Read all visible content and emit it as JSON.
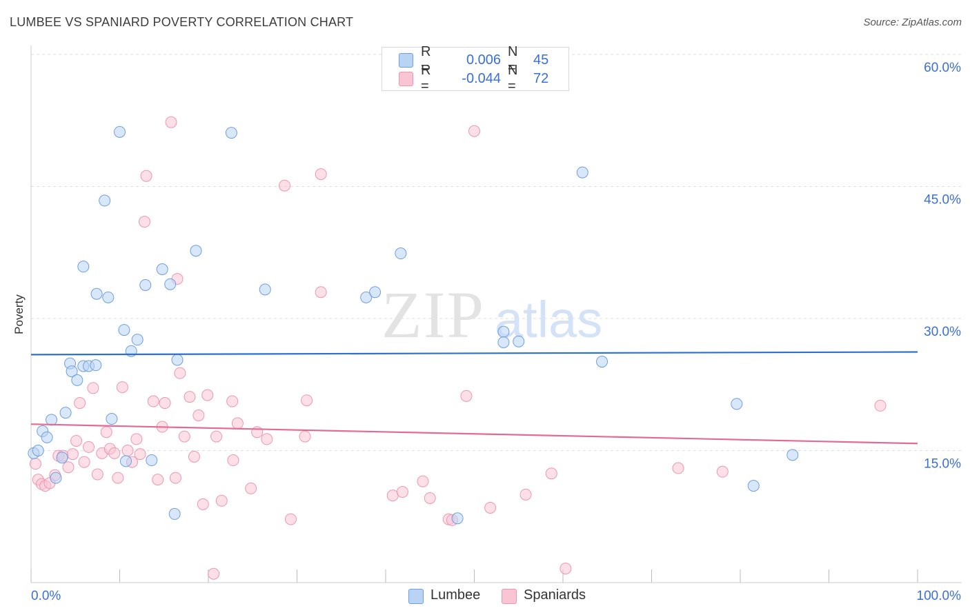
{
  "header": {
    "title": "LUMBEE VS SPANIARD POVERTY CORRELATION CHART",
    "source": "Source: ZipAtlas.com"
  },
  "legend": {
    "r_label": "R =",
    "n_label": "N =",
    "rows": [
      {
        "name": "Lumbee",
        "r": "0.006",
        "n": "45"
      },
      {
        "name": "Spaniards",
        "r": "-0.044",
        "n": "72"
      }
    ]
  },
  "bottom_legend": [
    "Lumbee",
    "Spaniards"
  ],
  "watermark": {
    "zip": "ZIP",
    "atlas": "atlas"
  },
  "colors": {
    "lumbee_fill": "#b9d3f5",
    "lumbee_stroke": "#6c9ee0",
    "lumbee_line": "#2a6fd1",
    "spaniards_fill": "#f9c4d3",
    "spaniards_stroke": "#eb97b1",
    "spaniards_line": "#e36a93",
    "axis_text": "#3a6fd8",
    "grid": "#dddddd"
  },
  "chart_data": {
    "type": "scatter",
    "title": "LUMBEE VS SPANIARD POVERTY CORRELATION CHART",
    "xlabel": "",
    "ylabel": "Poverty",
    "xlim": [
      0,
      100
    ],
    "ylim": [
      0,
      60
    ],
    "x_tick_labels": [
      "0.0%",
      "100.0%"
    ],
    "y_ticks": [
      15,
      30,
      45,
      60
    ],
    "y_tick_labels": [
      "15.0%",
      "30.0%",
      "45.0%",
      "60.0%"
    ],
    "grid": true,
    "legend_position": "top-center",
    "series": [
      {
        "name": "Lumbee",
        "r": 0.006,
        "n": 45,
        "trend": [
          [
            0,
            25.9
          ],
          [
            100,
            26.2
          ]
        ],
        "points": [
          [
            0.3,
            14.7
          ],
          [
            0.8,
            15.0
          ],
          [
            1.3,
            17.2
          ],
          [
            1.8,
            16.5
          ],
          [
            2.3,
            18.5
          ],
          [
            2.8,
            11.9
          ],
          [
            3.5,
            14.2
          ],
          [
            3.9,
            19.3
          ],
          [
            4.4,
            24.9
          ],
          [
            4.6,
            24.0
          ],
          [
            5.2,
            23.0
          ],
          [
            5.9,
            24.6
          ],
          [
            6.5,
            24.6
          ],
          [
            7.3,
            24.7
          ],
          [
            5.9,
            35.9
          ],
          [
            7.4,
            32.8
          ],
          [
            8.3,
            43.4
          ],
          [
            8.7,
            32.4
          ],
          [
            9.1,
            18.6
          ],
          [
            10.0,
            51.2
          ],
          [
            10.5,
            28.7
          ],
          [
            11.3,
            26.3
          ],
          [
            10.7,
            13.8
          ],
          [
            12.0,
            27.6
          ],
          [
            12.9,
            33.8
          ],
          [
            13.6,
            13.9
          ],
          [
            14.8,
            35.6
          ],
          [
            15.7,
            33.9
          ],
          [
            16.2,
            7.8
          ],
          [
            16.5,
            25.3
          ],
          [
            18.6,
            37.7
          ],
          [
            22.6,
            51.1
          ],
          [
            26.4,
            33.3
          ],
          [
            37.8,
            32.4
          ],
          [
            38.8,
            33.0
          ],
          [
            41.7,
            37.4
          ],
          [
            48.1,
            7.3
          ],
          [
            53.3,
            28.5
          ],
          [
            53.3,
            27.3
          ],
          [
            55.0,
            27.4
          ],
          [
            62.2,
            46.6
          ],
          [
            64.4,
            25.1
          ],
          [
            79.6,
            20.3
          ],
          [
            81.5,
            11.0
          ],
          [
            85.9,
            14.5
          ]
        ]
      },
      {
        "name": "Spaniards",
        "r": -0.044,
        "n": 72,
        "trend": [
          [
            0,
            18.0
          ],
          [
            100,
            15.8
          ]
        ],
        "points": [
          [
            0.5,
            13.5
          ],
          [
            0.8,
            11.7
          ],
          [
            1.2,
            11.2
          ],
          [
            1.6,
            11.0
          ],
          [
            2.1,
            11.3
          ],
          [
            2.7,
            12.2
          ],
          [
            3.1,
            14.4
          ],
          [
            3.6,
            14.4
          ],
          [
            4.2,
            13.1
          ],
          [
            4.7,
            14.6
          ],
          [
            5.1,
            16.1
          ],
          [
            5.5,
            20.4
          ],
          [
            6.0,
            13.7
          ],
          [
            6.5,
            15.4
          ],
          [
            7.0,
            22.1
          ],
          [
            7.5,
            12.3
          ],
          [
            8.0,
            14.7
          ],
          [
            8.5,
            17.1
          ],
          [
            8.9,
            15.2
          ],
          [
            9.4,
            14.7
          ],
          [
            9.8,
            11.9
          ],
          [
            10.3,
            22.2
          ],
          [
            10.9,
            15.0
          ],
          [
            11.4,
            13.7
          ],
          [
            11.9,
            16.3
          ],
          [
            12.3,
            14.6
          ],
          [
            13.0,
            46.2
          ],
          [
            12.8,
            41.0
          ],
          [
            13.8,
            20.6
          ],
          [
            14.3,
            11.7
          ],
          [
            14.8,
            17.7
          ],
          [
            15.1,
            20.4
          ],
          [
            15.8,
            52.3
          ],
          [
            16.3,
            11.9
          ],
          [
            16.5,
            34.5
          ],
          [
            16.8,
            23.8
          ],
          [
            17.3,
            16.6
          ],
          [
            17.9,
            21.1
          ],
          [
            18.4,
            14.3
          ],
          [
            18.9,
            19.0
          ],
          [
            19.4,
            8.9
          ],
          [
            19.9,
            21.3
          ],
          [
            20.6,
            1.0
          ],
          [
            20.9,
            16.6
          ],
          [
            21.5,
            9.3
          ],
          [
            22.7,
            20.6
          ],
          [
            22.8,
            13.9
          ],
          [
            23.3,
            18.1
          ],
          [
            24.8,
            10.7
          ],
          [
            25.5,
            17.1
          ],
          [
            26.6,
            16.3
          ],
          [
            28.6,
            45.1
          ],
          [
            29.3,
            7.2
          ],
          [
            30.9,
            16.6
          ],
          [
            31.1,
            20.7
          ],
          [
            32.7,
            46.4
          ],
          [
            32.7,
            33.0
          ],
          [
            40.8,
            9.9
          ],
          [
            41.9,
            10.3
          ],
          [
            44.2,
            11.5
          ],
          [
            45.0,
            9.6
          ],
          [
            47.1,
            7.2
          ],
          [
            47.5,
            7.1
          ],
          [
            49.1,
            21.2
          ],
          [
            50.0,
            51.3
          ],
          [
            51.8,
            8.5
          ],
          [
            55.8,
            10.0
          ],
          [
            58.7,
            12.4
          ],
          [
            60.3,
            1.6
          ],
          [
            73.0,
            13.0
          ],
          [
            78.0,
            12.6
          ],
          [
            95.8,
            20.1
          ]
        ]
      }
    ]
  }
}
